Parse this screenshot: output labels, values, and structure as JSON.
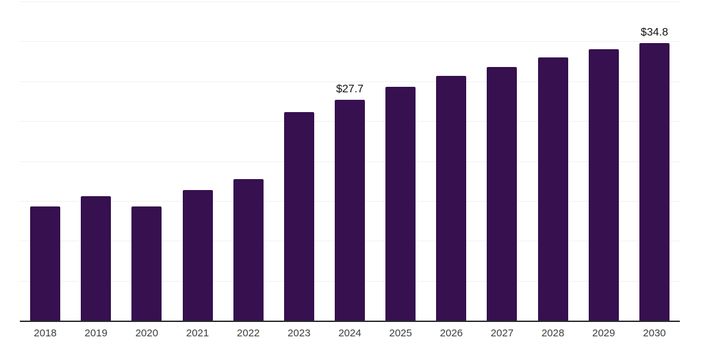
{
  "chart_data": {
    "type": "bar",
    "title": "",
    "xlabel": "",
    "ylabel": "",
    "categories": [
      "2018",
      "2019",
      "2020",
      "2021",
      "2022",
      "2023",
      "2024",
      "2025",
      "2026",
      "2027",
      "2028",
      "2029",
      "2030"
    ],
    "values": [
      14.3,
      15.6,
      14.3,
      16.4,
      17.7,
      26.1,
      27.7,
      29.3,
      30.7,
      31.8,
      33.0,
      34.0,
      34.8
    ],
    "annotations": {
      "2024": "$27.7",
      "2030": "$34.8"
    },
    "unit_prefix": "$",
    "ylim": [
      0,
      40
    ],
    "gridline_values": [
      5,
      10,
      15,
      20,
      25,
      30,
      35,
      40
    ],
    "grid_on": true,
    "y_tick_labels_visible": false,
    "legend_position": "none"
  },
  "colors": {
    "background": "#ffffff",
    "bar": "#36104f",
    "axis": "#2b2b2b",
    "gridline": "#f1f1f3",
    "tick_label": "#3d3d3d",
    "annotation": "#101010"
  }
}
